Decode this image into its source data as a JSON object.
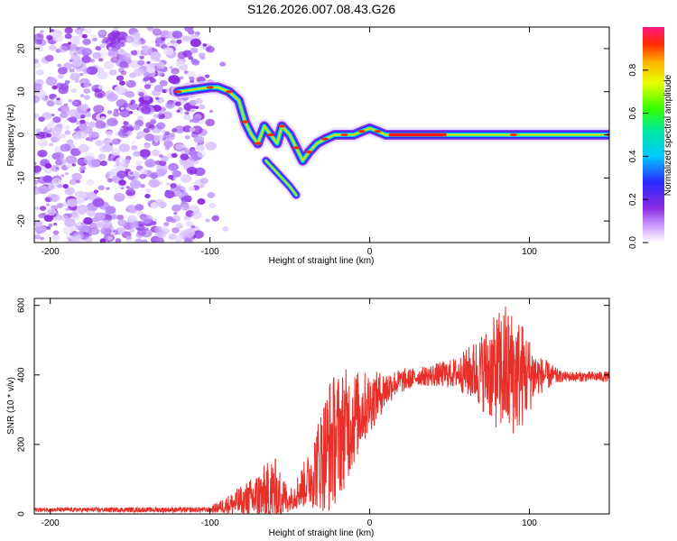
{
  "title": "S126.2026.007.08.43.G26",
  "colors": {
    "snr_line": "#e8302a",
    "background": "#ffffff",
    "axis": "#000000"
  },
  "chart_data": [
    {
      "type": "heatmap",
      "name": "spectrogram",
      "xlabel": "Height of straight line (km)",
      "ylabel": "Frequency (Hz)",
      "xlim": [
        -210,
        150
      ],
      "ylim": [
        -25,
        25
      ],
      "xticks": [
        -200,
        -100,
        0,
        100
      ],
      "yticks": [
        -20,
        -10,
        0,
        10,
        20
      ],
      "colorbar": {
        "label": "Normalized spectral amplitude",
        "range": [
          0.0,
          1.0
        ],
        "ticks": [
          0.0,
          0.2,
          0.4,
          0.6,
          0.8
        ],
        "tick_labels": [
          "0.0",
          "0.2",
          "0.4",
          "0.6",
          "0.8"
        ]
      },
      "noise_region_x": [
        -210,
        -105
      ],
      "ridge": [
        {
          "x": -120,
          "f": 10
        },
        {
          "x": -110,
          "f": 10.5
        },
        {
          "x": -100,
          "f": 11
        },
        {
          "x": -95,
          "f": 11
        },
        {
          "x": -88,
          "f": 10
        },
        {
          "x": -82,
          "f": 8
        },
        {
          "x": -78,
          "f": 3
        },
        {
          "x": -74,
          "f": 0
        },
        {
          "x": -70,
          "f": -2
        },
        {
          "x": -66,
          "f": 2
        },
        {
          "x": -62,
          "f": 0
        },
        {
          "x": -58,
          "f": -2
        },
        {
          "x": -55,
          "f": 2
        },
        {
          "x": -50,
          "f": 0
        },
        {
          "x": -46,
          "f": -3
        },
        {
          "x": -42,
          "f": -6
        },
        {
          "x": -38,
          "f": -4
        },
        {
          "x": -33,
          "f": -2
        },
        {
          "x": -28,
          "f": -1
        },
        {
          "x": -22,
          "f": 0
        },
        {
          "x": -16,
          "f": 0
        },
        {
          "x": -10,
          "f": 0
        },
        {
          "x": -5,
          "f": 0.8
        },
        {
          "x": 0,
          "f": 1.5
        },
        {
          "x": 5,
          "f": 0.8
        },
        {
          "x": 10,
          "f": 0
        },
        {
          "x": 30,
          "f": 0
        },
        {
          "x": 60,
          "f": 0
        },
        {
          "x": 90,
          "f": 0
        },
        {
          "x": 120,
          "f": 0
        },
        {
          "x": 150,
          "f": 0
        }
      ],
      "branch": [
        {
          "x": -65,
          "f": -6
        },
        {
          "x": -60,
          "f": -8
        },
        {
          "x": -55,
          "f": -10
        },
        {
          "x": -50,
          "f": -12
        },
        {
          "x": -46,
          "f": -14
        }
      ]
    },
    {
      "type": "line",
      "name": "snr",
      "xlabel": "Height of straight line (km)",
      "ylabel": "SNR (10 * v/v)",
      "xlim": [
        -210,
        150
      ],
      "ylim": [
        0,
        620
      ],
      "xticks": [
        -200,
        -100,
        0,
        100
      ],
      "yticks": [
        0,
        200,
        400,
        600
      ],
      "envelope": [
        {
          "x": -210,
          "base": 12,
          "amp": 6
        },
        {
          "x": -100,
          "base": 12,
          "amp": 8
        },
        {
          "x": -90,
          "base": 25,
          "amp": 25
        },
        {
          "x": -75,
          "base": 40,
          "amp": 60
        },
        {
          "x": -60,
          "base": 60,
          "amp": 110
        },
        {
          "x": -50,
          "base": 40,
          "amp": 30
        },
        {
          "x": -38,
          "base": 100,
          "amp": 80
        },
        {
          "x": -25,
          "base": 200,
          "amp": 200
        },
        {
          "x": -15,
          "base": 250,
          "amp": 170
        },
        {
          "x": -5,
          "base": 300,
          "amp": 110
        },
        {
          "x": 5,
          "base": 340,
          "amp": 70
        },
        {
          "x": 15,
          "base": 375,
          "amp": 40
        },
        {
          "x": 30,
          "base": 395,
          "amp": 25
        },
        {
          "x": 55,
          "base": 405,
          "amp": 45
        },
        {
          "x": 70,
          "base": 410,
          "amp": 110
        },
        {
          "x": 85,
          "base": 410,
          "amp": 200
        },
        {
          "x": 95,
          "base": 400,
          "amp": 160
        },
        {
          "x": 105,
          "base": 400,
          "amp": 60
        },
        {
          "x": 120,
          "base": 395,
          "amp": 15
        },
        {
          "x": 150,
          "base": 395,
          "amp": 15
        }
      ]
    }
  ]
}
